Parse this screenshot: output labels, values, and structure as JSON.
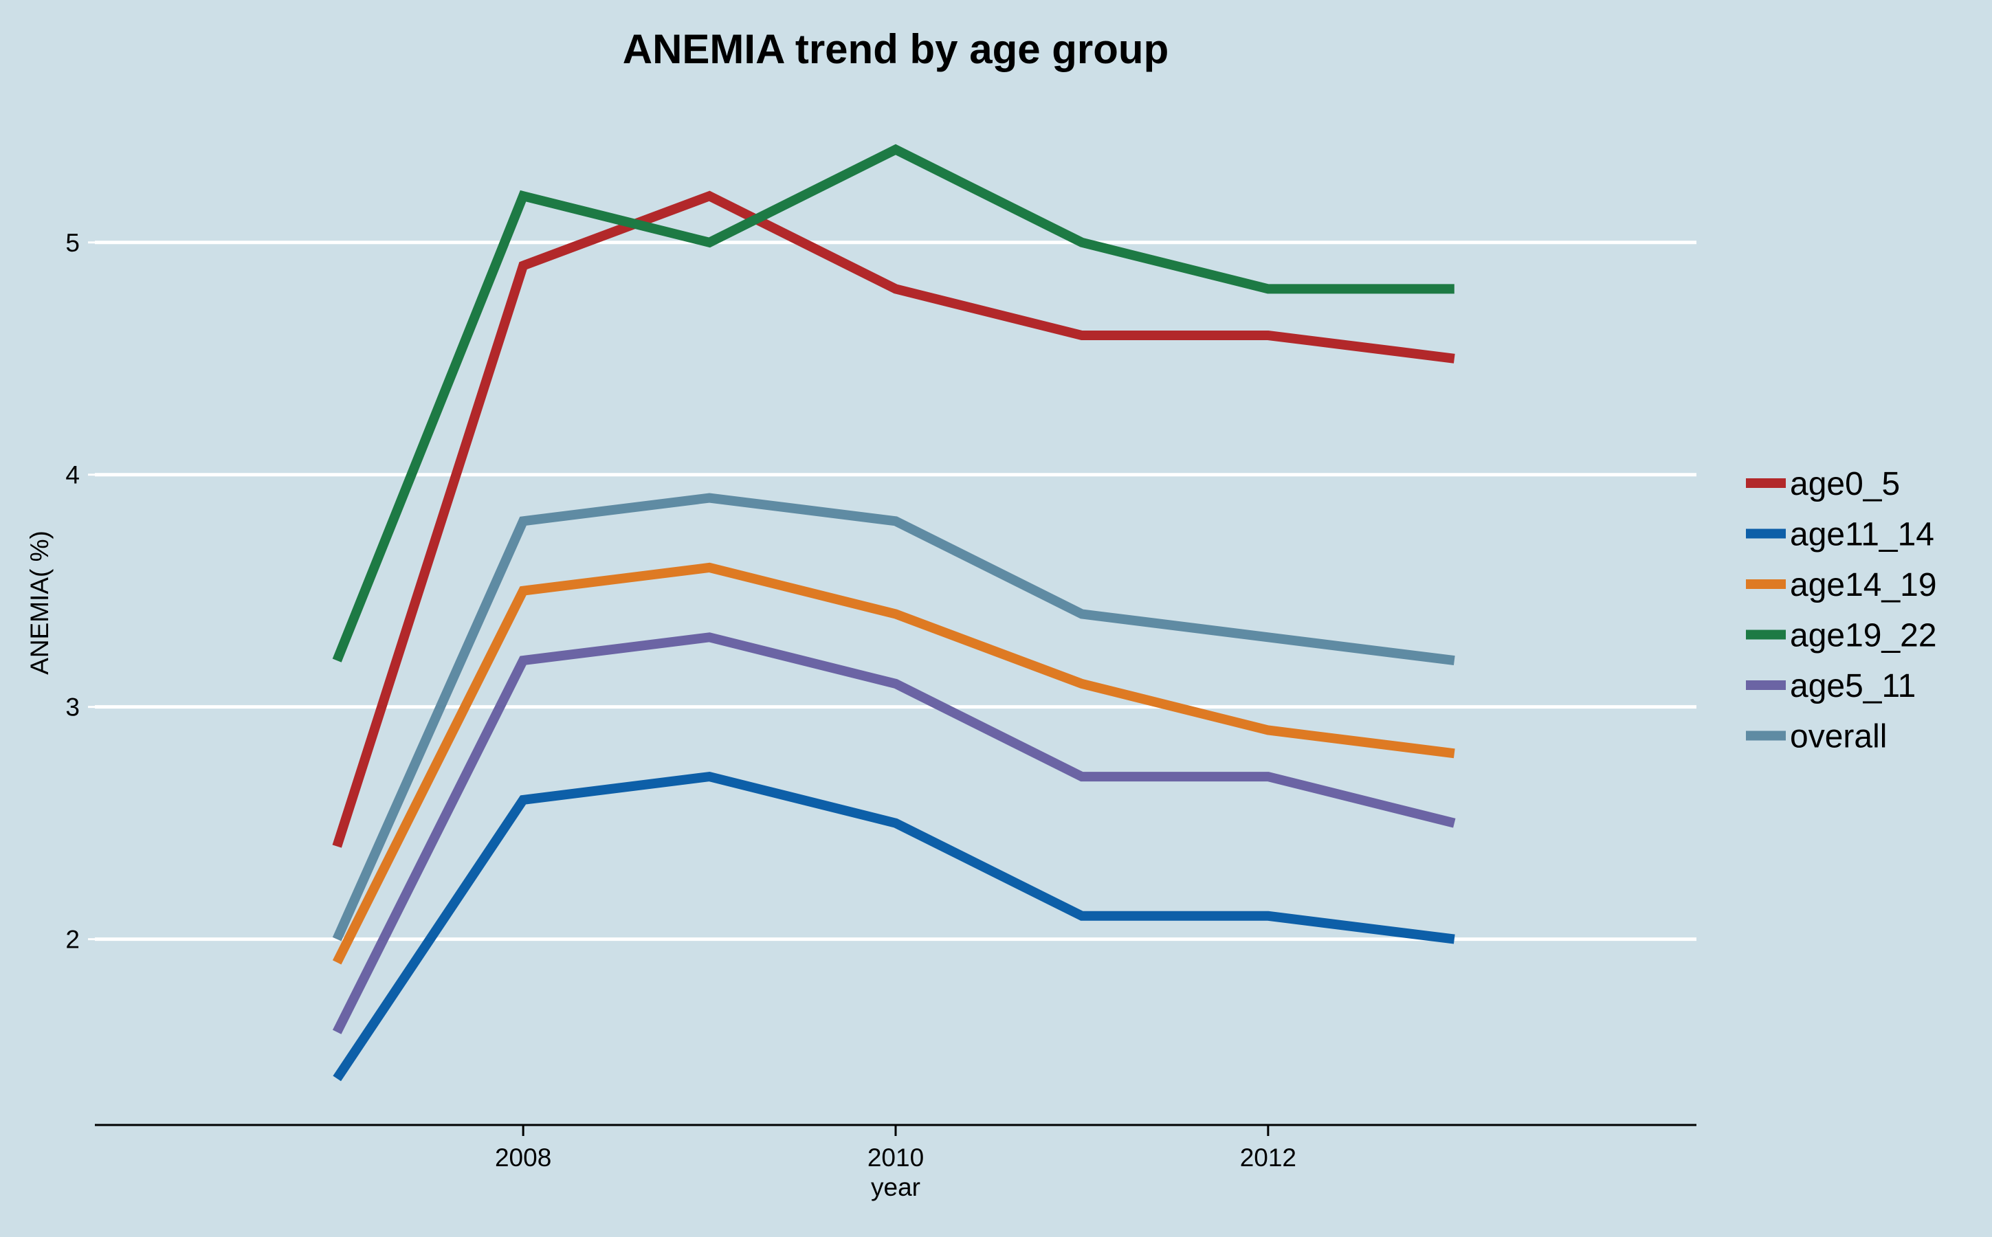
{
  "chart_data": {
    "type": "line",
    "title": "ANEMIA trend by age group",
    "xlabel": "year",
    "ylabel": "ANEMIA( %)",
    "x": [
      2007,
      2008,
      2009,
      2010,
      2011,
      2012,
      2013
    ],
    "xticks": [
      "2008",
      "2010",
      "2012"
    ],
    "yticks": [
      "2",
      "3",
      "4",
      "5"
    ],
    "xlim": [
      2005.7,
      2014.3
    ],
    "ylim": [
      1.2,
      5.6
    ],
    "grid": true,
    "legend_position": "right",
    "series": [
      {
        "name": "age0_5",
        "color": "#b2282a",
        "values": [
          2.4,
          4.9,
          5.2,
          4.8,
          4.6,
          4.6,
          4.5
        ]
      },
      {
        "name": "age11_14",
        "color": "#0d5fa8",
        "values": [
          1.4,
          2.6,
          2.7,
          2.5,
          2.1,
          2.1,
          2.0
        ]
      },
      {
        "name": "age14_19",
        "color": "#de7a23",
        "values": [
          1.9,
          3.5,
          3.6,
          3.4,
          3.1,
          2.9,
          2.8
        ]
      },
      {
        "name": "age19_22",
        "color": "#1d7a44",
        "values": [
          3.2,
          5.2,
          5.0,
          5.4,
          5.0,
          4.8,
          4.8
        ]
      },
      {
        "name": "age5_11",
        "color": "#6b64a4",
        "values": [
          1.6,
          3.2,
          3.3,
          3.1,
          2.7,
          2.7,
          2.5
        ]
      },
      {
        "name": "overall",
        "color": "#5f8ba3",
        "values": [
          2.0,
          3.8,
          3.9,
          3.8,
          3.4,
          3.3,
          3.2
        ]
      }
    ]
  }
}
